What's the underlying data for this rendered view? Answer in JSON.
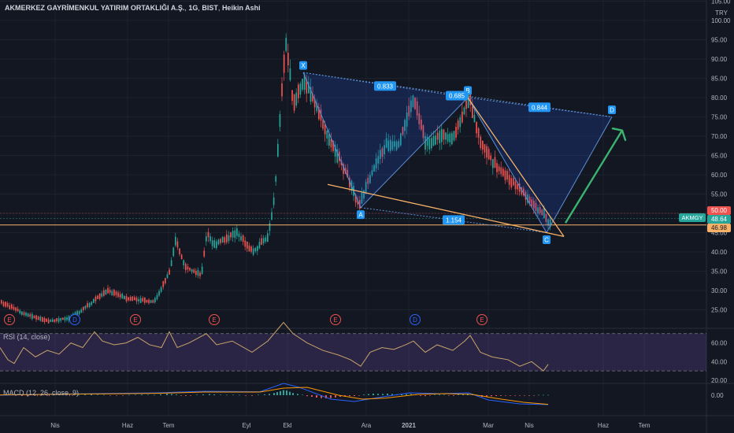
{
  "header": {
    "symbol_name": "AKMERKEZ GAYRİMENKUL YATIRIM ORTAKLIĞI A.Ş.",
    "interval": "1G",
    "exchange": "BIST",
    "chart_style": "Heikin Ashi"
  },
  "currency": "TRY",
  "colors": {
    "background": "#131722",
    "up": "#26a69a",
    "down": "#ef5350",
    "pattern_line": "#5b8fd6",
    "trendline": "#f7b267",
    "arrow": "#3cb371",
    "rsi_line": "#c9a46a",
    "macd_line": "#2962ff",
    "signal_line": "#ff9800"
  },
  "symbol_tag": "AKMGY",
  "price_tags": [
    {
      "value": "50.00",
      "color": "#ef5350"
    },
    {
      "value": "48.64",
      "color": "#26a69a"
    },
    {
      "value": "46.98",
      "color": "#f7b267"
    }
  ],
  "chart_data": {
    "type": "candlestick",
    "title": "AKMERKEZ GAYRİMENKUL YATIRIM ORTAKLIĞI A.Ş., 1G, BIST, Heikin Ashi",
    "x_ticks": [
      "Nis",
      "Haz",
      "Tem",
      "Eyl",
      "Ekl",
      "Ara",
      "2021",
      "Mar",
      "Nis",
      "Haz",
      "Tem"
    ],
    "y_ticks": [
      "25.00",
      "30.00",
      "35.00",
      "40.00",
      "45.00",
      "50.00",
      "55.00",
      "60.00",
      "65.00",
      "70.00",
      "75.00",
      "80.00",
      "85.00",
      "90.00",
      "95.00",
      "100.00",
      "105.00"
    ],
    "ylim": [
      20,
      105
    ],
    "price_path": [
      [
        0,
        27
      ],
      [
        30,
        24
      ],
      [
        60,
        22
      ],
      [
        90,
        23
      ],
      [
        110,
        26
      ],
      [
        135,
        30
      ],
      [
        160,
        28
      ],
      [
        195,
        27
      ],
      [
        215,
        35
      ],
      [
        222,
        43
      ],
      [
        235,
        36
      ],
      [
        255,
        34
      ],
      [
        262,
        45
      ],
      [
        270,
        42
      ],
      [
        282,
        43
      ],
      [
        300,
        45
      ],
      [
        320,
        40
      ],
      [
        340,
        44
      ],
      [
        348,
        55
      ],
      [
        356,
        78
      ],
      [
        362,
        95
      ],
      [
        372,
        78
      ],
      [
        385,
        85
      ],
      [
        400,
        78
      ],
      [
        420,
        68
      ],
      [
        440,
        60
      ],
      [
        455,
        52
      ],
      [
        470,
        60
      ],
      [
        490,
        68
      ],
      [
        505,
        68
      ],
      [
        525,
        80
      ],
      [
        540,
        68
      ],
      [
        555,
        70
      ],
      [
        575,
        70
      ],
      [
        595,
        80
      ],
      [
        610,
        68
      ],
      [
        630,
        62
      ],
      [
        650,
        58
      ],
      [
        665,
        55
      ],
      [
        680,
        51
      ],
      [
        690,
        50
      ],
      [
        696,
        47
      ],
      [
        700,
        49
      ]
    ],
    "harmonic_pattern": {
      "points": [
        {
          "label": "X",
          "x": 385,
          "price": 86.5
        },
        {
          "label": "A",
          "x": 458,
          "price": 51.5
        },
        {
          "label": "B",
          "x": 594,
          "price": 80.0
        },
        {
          "label": "C",
          "x": 694,
          "price": 45.0
        },
        {
          "label": "D",
          "x": 777,
          "price": 75.0
        }
      ],
      "ratios": [
        {
          "label": "0.833",
          "x": 489,
          "price": 83.0
        },
        {
          "label": "0.685",
          "x": 580,
          "price": 80.5
        },
        {
          "label": "0.844",
          "x": 685,
          "price": 77.5
        },
        {
          "label": "1.154",
          "x": 576,
          "price": 48.3
        }
      ]
    },
    "markers": [
      {
        "label": "E",
        "x": 12,
        "kind": "earnings"
      },
      {
        "label": "D",
        "x": 95,
        "kind": "dividend"
      },
      {
        "label": "E",
        "x": 172,
        "kind": "earnings"
      },
      {
        "label": "E",
        "x": 272,
        "kind": "earnings"
      },
      {
        "label": "E",
        "x": 426,
        "kind": "earnings"
      },
      {
        "label": "D",
        "x": 527,
        "kind": "dividend"
      },
      {
        "label": "E",
        "x": 612,
        "kind": "earnings"
      }
    ],
    "rsi": {
      "label": "RSI (14, close)",
      "upper": 70,
      "lower": 30,
      "y_ticks": [
        "20.00",
        "40.00",
        "60.00"
      ],
      "path": [
        [
          0,
          55
        ],
        [
          10,
          42
        ],
        [
          18,
          38
        ],
        [
          30,
          55
        ],
        [
          45,
          45
        ],
        [
          60,
          52
        ],
        [
          75,
          48
        ],
        [
          90,
          60
        ],
        [
          105,
          55
        ],
        [
          120,
          72
        ],
        [
          130,
          62
        ],
        [
          145,
          58
        ],
        [
          160,
          60
        ],
        [
          175,
          66
        ],
        [
          190,
          58
        ],
        [
          205,
          55
        ],
        [
          215,
          72
        ],
        [
          225,
          55
        ],
        [
          240,
          60
        ],
        [
          262,
          70
        ],
        [
          275,
          58
        ],
        [
          295,
          62
        ],
        [
          320,
          50
        ],
        [
          340,
          62
        ],
        [
          350,
          72
        ],
        [
          360,
          82
        ],
        [
          372,
          70
        ],
        [
          390,
          60
        ],
        [
          410,
          52
        ],
        [
          430,
          47
        ],
        [
          445,
          42
        ],
        [
          458,
          35
        ],
        [
          470,
          50
        ],
        [
          485,
          55
        ],
        [
          500,
          53
        ],
        [
          515,
          58
        ],
        [
          525,
          62
        ],
        [
          540,
          50
        ],
        [
          555,
          58
        ],
        [
          575,
          52
        ],
        [
          590,
          62
        ],
        [
          597,
          68
        ],
        [
          610,
          50
        ],
        [
          625,
          45
        ],
        [
          645,
          42
        ],
        [
          660,
          35
        ],
        [
          675,
          40
        ],
        [
          690,
          30
        ],
        [
          696,
          37
        ]
      ]
    },
    "macd": {
      "label": "MACD (12, 26, close, 9)",
      "y_ticks": [
        "0.00"
      ],
      "histogram": [
        [
          5,
          0.3
        ],
        [
          12,
          0.4
        ],
        [
          20,
          -0.3
        ],
        [
          28,
          -0.5
        ],
        [
          36,
          -0.4
        ],
        [
          44,
          -0.2
        ],
        [
          52,
          -0.3
        ],
        [
          60,
          -0.2
        ],
        [
          68,
          0.2
        ],
        [
          76,
          0.3
        ],
        [
          84,
          0.2
        ],
        [
          92,
          -0.2
        ],
        [
          100,
          0.2
        ],
        [
          108,
          0.4
        ],
        [
          116,
          0.5
        ],
        [
          124,
          0.3
        ],
        [
          132,
          0.2
        ],
        [
          140,
          -0.2
        ],
        [
          148,
          -0.3
        ],
        [
          156,
          -0.2
        ],
        [
          164,
          0.2
        ],
        [
          172,
          0.3
        ],
        [
          180,
          0.4
        ],
        [
          188,
          0.3
        ],
        [
          196,
          0.2
        ],
        [
          204,
          0.6
        ],
        [
          212,
          0.9
        ],
        [
          218,
          0.7
        ],
        [
          224,
          0.4
        ],
        [
          230,
          -0.3
        ],
        [
          236,
          -0.4
        ],
        [
          242,
          -0.3
        ],
        [
          250,
          0.3
        ],
        [
          258,
          0.5
        ],
        [
          266,
          0.7
        ],
        [
          272,
          0.5
        ],
        [
          280,
          0.3
        ],
        [
          288,
          0.2
        ],
        [
          296,
          0.3
        ],
        [
          304,
          0.2
        ],
        [
          312,
          -0.3
        ],
        [
          320,
          -0.4
        ],
        [
          328,
          0.3
        ],
        [
          336,
          0.5
        ],
        [
          342,
          0.8
        ],
        [
          348,
          1.4
        ],
        [
          352,
          2.0
        ],
        [
          356,
          2.6
        ],
        [
          360,
          3.2
        ],
        [
          364,
          3.0
        ],
        [
          368,
          2.2
        ],
        [
          372,
          1.4
        ],
        [
          378,
          0.8
        ],
        [
          384,
          0.3
        ],
        [
          390,
          -0.6
        ],
        [
          396,
          -1.0
        ],
        [
          402,
          -1.5
        ],
        [
          408,
          -1.8
        ],
        [
          414,
          -2.0
        ],
        [
          420,
          -1.8
        ],
        [
          426,
          -1.4
        ],
        [
          432,
          -1.0
        ],
        [
          438,
          -0.8
        ],
        [
          444,
          -0.6
        ],
        [
          450,
          -0.5
        ],
        [
          456,
          -0.3
        ],
        [
          462,
          0.4
        ],
        [
          468,
          0.7
        ],
        [
          474,
          1.0
        ],
        [
          480,
          0.9
        ],
        [
          486,
          0.8
        ],
        [
          492,
          1.0
        ],
        [
          498,
          0.8
        ],
        [
          504,
          0.6
        ],
        [
          510,
          0.5
        ],
        [
          516,
          0.7
        ],
        [
          522,
          0.8
        ],
        [
          528,
          0.5
        ],
        [
          534,
          -0.4
        ],
        [
          540,
          -0.6
        ],
        [
          546,
          -0.3
        ],
        [
          552,
          0.3
        ],
        [
          558,
          0.4
        ],
        [
          564,
          0.3
        ],
        [
          570,
          -0.3
        ],
        [
          576,
          -0.4
        ],
        [
          582,
          0.4
        ],
        [
          588,
          0.8
        ],
        [
          594,
          1.0
        ],
        [
          600,
          0.5
        ],
        [
          606,
          -0.7
        ],
        [
          612,
          -1.0
        ],
        [
          618,
          -0.9
        ],
        [
          624,
          -0.6
        ],
        [
          630,
          -0.5
        ],
        [
          636,
          -0.4
        ],
        [
          642,
          -0.3
        ],
        [
          648,
          -0.3
        ],
        [
          654,
          -0.2
        ],
        [
          660,
          -0.2
        ],
        [
          666,
          -0.1
        ],
        [
          672,
          -0.2
        ],
        [
          678,
          -0.2
        ],
        [
          684,
          0.2
        ],
        [
          690,
          0.2
        ],
        [
          696,
          0.2
        ]
      ],
      "macd_path": [
        [
          0,
          0
        ],
        [
          60,
          0.6
        ],
        [
          120,
          1.0
        ],
        [
          200,
          1.5
        ],
        [
          260,
          2.5
        ],
        [
          330,
          2.2
        ],
        [
          360,
          7.5
        ],
        [
          380,
          5.0
        ],
        [
          420,
          -2.5
        ],
        [
          450,
          -4.0
        ],
        [
          480,
          -1.5
        ],
        [
          520,
          1.5
        ],
        [
          560,
          1.0
        ],
        [
          595,
          1.5
        ],
        [
          620,
          -3.0
        ],
        [
          660,
          -5.5
        ],
        [
          696,
          -6.0
        ]
      ],
      "signal_path": [
        [
          0,
          0.2
        ],
        [
          60,
          0.5
        ],
        [
          120,
          0.8
        ],
        [
          200,
          1.2
        ],
        [
          260,
          2.0
        ],
        [
          330,
          2.0
        ],
        [
          360,
          4.5
        ],
        [
          390,
          5.0
        ],
        [
          430,
          0.0
        ],
        [
          460,
          -2.5
        ],
        [
          490,
          -1.8
        ],
        [
          530,
          0.5
        ],
        [
          565,
          1.0
        ],
        [
          600,
          0.5
        ],
        [
          630,
          -2.0
        ],
        [
          665,
          -4.5
        ],
        [
          696,
          -5.8
        ]
      ]
    }
  }
}
